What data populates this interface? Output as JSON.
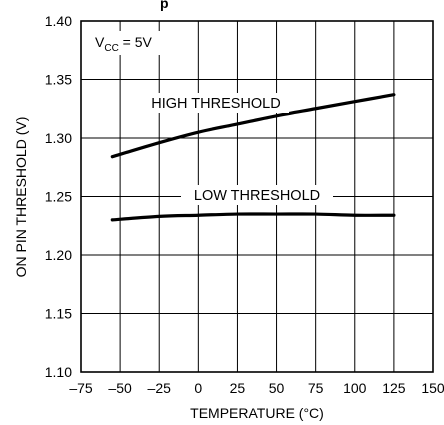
{
  "header_partial": "p",
  "chart_data": {
    "type": "line",
    "xlabel": "TEMPERATURE (°C)",
    "ylabel": "ON PIN THRESHOLD (V)",
    "xlim": [
      -75,
      150
    ],
    "ylim": [
      1.1,
      1.4
    ],
    "xticks": [
      -75,
      -50,
      -25,
      0,
      25,
      50,
      75,
      100,
      125,
      150
    ],
    "xtick_labels": [
      "–75",
      "–50",
      "–25",
      "0",
      "25",
      "50",
      "75",
      "100",
      "125",
      "150"
    ],
    "yticks": [
      1.1,
      1.15,
      1.2,
      1.25,
      1.3,
      1.35,
      1.4
    ],
    "ytick_labels": [
      "1.10",
      "1.15",
      "1.20",
      "1.25",
      "1.30",
      "1.35",
      "1.40"
    ],
    "condition": {
      "prefix": "V",
      "subscript": "CC",
      "suffix": " = 5V"
    },
    "grid": true,
    "series": [
      {
        "name": "HIGH THRESHOLD",
        "x": [
          -55,
          -25,
          0,
          25,
          50,
          75,
          100,
          125
        ],
        "y": [
          1.284,
          1.296,
          1.305,
          1.312,
          1.319,
          1.325,
          1.331,
          1.337
        ]
      },
      {
        "name": "LOW THRESHOLD",
        "x": [
          -55,
          -25,
          0,
          25,
          50,
          75,
          100,
          125
        ],
        "y": [
          1.23,
          1.233,
          1.234,
          1.235,
          1.235,
          1.235,
          1.234,
          1.234
        ]
      }
    ]
  }
}
